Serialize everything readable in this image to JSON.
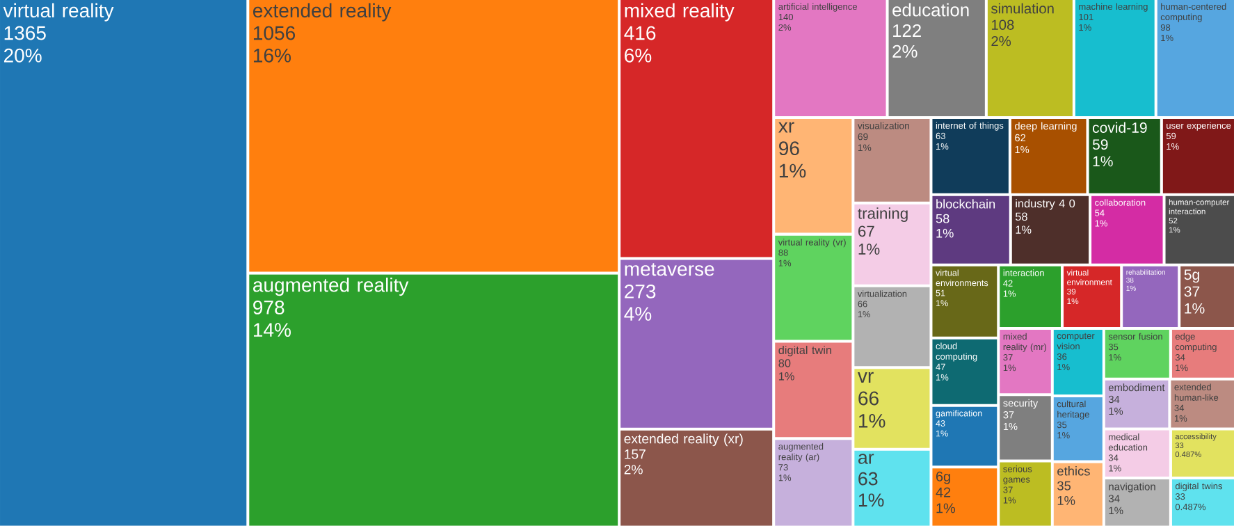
{
  "chart_data": {
    "type": "other",
    "data_labels": true,
    "categories": [
      "virtual reality",
      "extended reality",
      "augmented reality",
      "mixed reality",
      "metaverse",
      "extended reality (xr)",
      "artificial intelligence",
      "education",
      "simulation",
      "machine learning",
      "human-centered computing",
      "xr",
      "virtual reality (vr)",
      "digital twin",
      "augmented reality (ar)",
      "visualization",
      "training",
      "virtualization",
      "vr",
      "ar",
      "internet of things",
      "deep learning",
      "covid-19",
      "user experience",
      "blockchain",
      "industry 4 0",
      "collaboration",
      "human-computer interaction",
      "virtual environments",
      "cloud computing",
      "gamification",
      "6g",
      "interaction",
      "virtual environment",
      "rehabilitation",
      "5g",
      "mixed reality (mr)",
      "security",
      "serious games",
      "computer vision",
      "cultural heritage",
      "ethics",
      "sensor fusion",
      "edge computing",
      "embodiment",
      "extended human-like",
      "medical education",
      "navigation",
      "accessibility",
      "digital twins"
    ],
    "values": [
      1365,
      1056,
      978,
      416,
      273,
      157,
      140,
      122,
      108,
      101,
      98,
      96,
      88,
      80,
      73,
      69,
      67,
      66,
      66,
      63,
      63,
      62,
      59,
      59,
      58,
      58,
      54,
      52,
      51,
      47,
      43,
      42,
      42,
      39,
      38,
      37,
      37,
      37,
      37,
      36,
      35,
      35,
      35,
      34,
      34,
      34,
      34,
      34,
      33,
      33
    ],
    "annotations": [
      "20%",
      "16%",
      "14%",
      "6%",
      "4%",
      "2%",
      "2%",
      "2%",
      "2%",
      "1%",
      "1%",
      "1%",
      "1%",
      "1%",
      "1%",
      "1%",
      "1%",
      "1%",
      "1%",
      "1%",
      "1%",
      "1%",
      "1%",
      "1%",
      "1%",
      "1%",
      "1%",
      "1%",
      "1%",
      "1%",
      "1%",
      "1%",
      "1%",
      "1%",
      "1%",
      "1%",
      "1%",
      "1%",
      "1%",
      "1%",
      "1%",
      "1%",
      "1%",
      "1%",
      "1%",
      "1%",
      "1%",
      "1%",
      "0.487%",
      "0.487%"
    ],
    "colors": [
      "#1f77b4",
      "#ff7f0e",
      "#2ca02c",
      "#d62728",
      "#9467bd",
      "#8c564b",
      "#e377c2",
      "#7f7f7f",
      "#bcbd22",
      "#17becf",
      "#56a6e0",
      "#ffb574",
      "#5fd35f",
      "#e77c7c",
      "#c6b0dc",
      "#bc8b81",
      "#f4cce6",
      "#b2b2b2",
      "#e2e25f",
      "#5fe2ee",
      "#103c5a",
      "#a85000",
      "#1a581a",
      "#801818",
      "#5e3a80",
      "#4e2f2a",
      "#d42ca4",
      "#4c4c4c",
      "#686818",
      "#0e6a72",
      "#1f77b4",
      "#ff7f0e",
      "#2ca02c",
      "#d62728",
      "#9467bd",
      "#8c564b",
      "#e377c2",
      "#7f7f7f",
      "#bcbd22",
      "#17becf",
      "#56a6e0",
      "#ffb574",
      "#5fd35f",
      "#e77c7c",
      "#c6b0dc",
      "#bc8b81",
      "#f4cce6",
      "#b2b2b2",
      "#e2e25f",
      "#5fe2ee"
    ]
  }
}
